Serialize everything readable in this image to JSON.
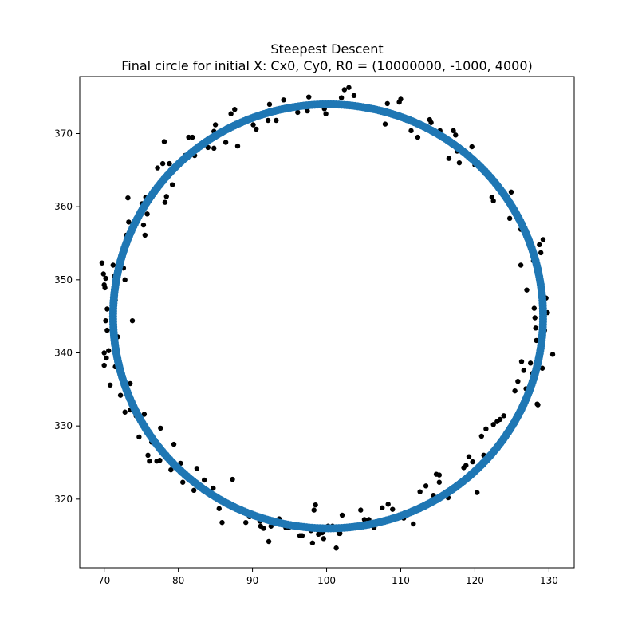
{
  "chart_data": {
    "type": "scatter",
    "title": "Steepest Descent",
    "subtitle": "Final circle for initial X: Cx0, Cy0, R0 = (10000000, -1000, 4000)",
    "xlabel": "",
    "ylabel": "",
    "xlim": [
      66.7,
      133.4
    ],
    "ylim": [
      310.6,
      377.8
    ],
    "xticks": [
      70,
      80,
      90,
      100,
      110,
      120,
      130
    ],
    "yticks": [
      320,
      330,
      340,
      350,
      360,
      370
    ],
    "grid": false,
    "legend": "none",
    "colors": {
      "data_points": "#000000",
      "fitted_circle": "#1f77b4"
    },
    "fitted_circle": {
      "cx": 100.2,
      "cy": 345.0,
      "r": 29.0,
      "n_points": 500
    },
    "series": [
      {
        "kind": "points",
        "points": [
          [
            69.7,
            352.3
          ],
          [
            69.9,
            350.8
          ],
          [
            70.2,
            350.2
          ],
          [
            70.0,
            349.3
          ],
          [
            70.1,
            348.9
          ],
          [
            70.4,
            346.0
          ],
          [
            70.2,
            344.4
          ],
          [
            70.4,
            343.1
          ],
          [
            70.0,
            340.0
          ],
          [
            70.3,
            339.3
          ],
          [
            70.0,
            338.3
          ],
          [
            70.6,
            340.3
          ],
          [
            70.8,
            335.6
          ],
          [
            71.2,
            352.0
          ],
          [
            71.4,
            350.5
          ],
          [
            71.5,
            347.2
          ],
          [
            71.8,
            342.2
          ],
          [
            71.5,
            338.1
          ],
          [
            72.2,
            334.2
          ],
          [
            72.5,
            336.9
          ],
          [
            72.6,
            351.6
          ],
          [
            72.8,
            350.0
          ],
          [
            72.8,
            331.9
          ],
          [
            73.0,
            356.1
          ],
          [
            73.3,
            357.9
          ],
          [
            73.2,
            361.2
          ],
          [
            73.5,
            332.2
          ],
          [
            73.5,
            335.8
          ],
          [
            73.8,
            344.4
          ],
          [
            74.3,
            331.4
          ],
          [
            74.7,
            328.5
          ],
          [
            75.1,
            360.4
          ],
          [
            75.3,
            357.5
          ],
          [
            75.5,
            356.1
          ],
          [
            75.6,
            361.3
          ],
          [
            75.8,
            359.0
          ],
          [
            75.4,
            331.6
          ],
          [
            75.9,
            326.0
          ],
          [
            76.1,
            325.2
          ],
          [
            76.4,
            327.8
          ],
          [
            77.1,
            325.2
          ],
          [
            77.5,
            325.3
          ],
          [
            77.6,
            329.7
          ],
          [
            77.2,
            365.3
          ],
          [
            77.9,
            365.9
          ],
          [
            78.1,
            368.9
          ],
          [
            78.4,
            361.4
          ],
          [
            78.2,
            360.6
          ],
          [
            78.8,
            365.9
          ],
          [
            79.2,
            363.0
          ],
          [
            79.4,
            327.5
          ],
          [
            79.0,
            324.0
          ],
          [
            80.3,
            324.9
          ],
          [
            80.6,
            322.3
          ],
          [
            80.9,
            367.0
          ],
          [
            81.4,
            369.5
          ],
          [
            81.9,
            369.5
          ],
          [
            82.2,
            367.0
          ],
          [
            82.1,
            321.2
          ],
          [
            82.5,
            324.2
          ],
          [
            83.5,
            322.6
          ],
          [
            84.0,
            368.1
          ],
          [
            84.8,
            370.3
          ],
          [
            85.0,
            371.2
          ],
          [
            84.8,
            368.0
          ],
          [
            84.7,
            321.5
          ],
          [
            85.2,
            320.3
          ],
          [
            85.9,
            316.8
          ],
          [
            85.5,
            318.7
          ],
          [
            86.4,
            368.8
          ],
          [
            87.1,
            372.7
          ],
          [
            87.3,
            322.7
          ],
          [
            87.6,
            373.3
          ],
          [
            88.0,
            368.3
          ],
          [
            89.1,
            316.8
          ],
          [
            89.6,
            317.6
          ],
          [
            90.1,
            371.2
          ],
          [
            90.5,
            370.6
          ],
          [
            90.7,
            372.5
          ],
          [
            91.0,
            317.0
          ],
          [
            91.1,
            316.3
          ],
          [
            91.5,
            316.0
          ],
          [
            92.1,
            371.8
          ],
          [
            92.3,
            374.0
          ],
          [
            92.2,
            314.2
          ],
          [
            92.5,
            316.3
          ],
          [
            93.2,
            371.8
          ],
          [
            93.6,
            317.3
          ],
          [
            94.2,
            374.6
          ],
          [
            94.5,
            316.1
          ],
          [
            94.9,
            316.1
          ],
          [
            95.8,
            373.8
          ],
          [
            96.1,
            372.9
          ],
          [
            96.4,
            315.0
          ],
          [
            96.7,
            315.0
          ],
          [
            97.4,
            373.1
          ],
          [
            97.6,
            375.0
          ],
          [
            97.9,
            315.7
          ],
          [
            98.1,
            314.0
          ],
          [
            98.3,
            318.5
          ],
          [
            98.5,
            319.2
          ],
          [
            98.9,
            315.2
          ],
          [
            99.2,
            315.7
          ],
          [
            99.4,
            315.4
          ],
          [
            99.6,
            314.6
          ],
          [
            99.7,
            373.4
          ],
          [
            99.9,
            372.7
          ],
          [
            100.2,
            316.3
          ],
          [
            100.8,
            316.3
          ],
          [
            101.3,
            313.3
          ],
          [
            101.7,
            315.3
          ],
          [
            101.8,
            315.3
          ],
          [
            102.1,
            317.8
          ],
          [
            102.0,
            374.9
          ],
          [
            102.4,
            376.0
          ],
          [
            103.0,
            376.3
          ],
          [
            103.7,
            375.2
          ],
          [
            104.1,
            316.1
          ],
          [
            104.6,
            318.5
          ],
          [
            105.1,
            317.2
          ],
          [
            105.7,
            317.2
          ],
          [
            106.4,
            316.1
          ],
          [
            107.5,
            318.8
          ],
          [
            107.9,
            371.3
          ],
          [
            108.2,
            374.1
          ],
          [
            108.3,
            319.3
          ],
          [
            108.9,
            318.6
          ],
          [
            109.8,
            374.3
          ],
          [
            110.0,
            374.7
          ],
          [
            110.4,
            317.4
          ],
          [
            110.7,
            372.2
          ],
          [
            111.4,
            370.4
          ],
          [
            111.7,
            316.6
          ],
          [
            112.1,
            371.4
          ],
          [
            112.3,
            369.5
          ],
          [
            112.6,
            321.0
          ],
          [
            113.4,
            321.8
          ],
          [
            113.9,
            371.9
          ],
          [
            114.1,
            371.5
          ],
          [
            114.4,
            320.5
          ],
          [
            114.8,
            323.4
          ],
          [
            115.2,
            323.3
          ],
          [
            115.2,
            322.3
          ],
          [
            115.3,
            370.4
          ],
          [
            115.5,
            369.4
          ],
          [
            116.5,
            366.6
          ],
          [
            116.4,
            320.2
          ],
          [
            117.1,
            370.4
          ],
          [
            117.4,
            369.8
          ],
          [
            117.6,
            367.6
          ],
          [
            117.9,
            366.0
          ],
          [
            118.5,
            324.3
          ],
          [
            118.8,
            324.6
          ],
          [
            119.2,
            325.8
          ],
          [
            119.6,
            368.2
          ],
          [
            119.7,
            325.1
          ],
          [
            120.0,
            365.7
          ],
          [
            120.3,
            320.9
          ],
          [
            120.9,
            328.6
          ],
          [
            121.2,
            326.0
          ],
          [
            121.5,
            329.6
          ],
          [
            122.3,
            361.3
          ],
          [
            122.5,
            360.8
          ],
          [
            122.5,
            330.2
          ],
          [
            123.0,
            330.6
          ],
          [
            123.4,
            330.9
          ],
          [
            123.9,
            331.4
          ],
          [
            124.7,
            358.4
          ],
          [
            124.9,
            362.0
          ],
          [
            125.4,
            334.8
          ],
          [
            125.8,
            336.1
          ],
          [
            126.2,
            356.9
          ],
          [
            126.3,
            338.8
          ],
          [
            126.6,
            337.6
          ],
          [
            126.9,
            335.1
          ],
          [
            127.2,
            355.2
          ],
          [
            127.5,
            338.6
          ],
          [
            127.8,
            337.2
          ],
          [
            127.9,
            352.6
          ],
          [
            128.0,
            346.1
          ],
          [
            128.1,
            344.8
          ],
          [
            128.2,
            343.4
          ],
          [
            128.3,
            341.7
          ],
          [
            128.4,
            333.0
          ],
          [
            128.5,
            332.9
          ],
          [
            128.7,
            354.8
          ],
          [
            128.9,
            353.7
          ],
          [
            129.2,
            355.5
          ],
          [
            129.4,
            343.1
          ],
          [
            129.1,
            337.9
          ],
          [
            129.6,
            347.5
          ],
          [
            129.8,
            345.5
          ],
          [
            130.5,
            339.8
          ],
          [
            127.0,
            348.6
          ],
          [
            126.2,
            352.0
          ]
        ]
      }
    ]
  }
}
